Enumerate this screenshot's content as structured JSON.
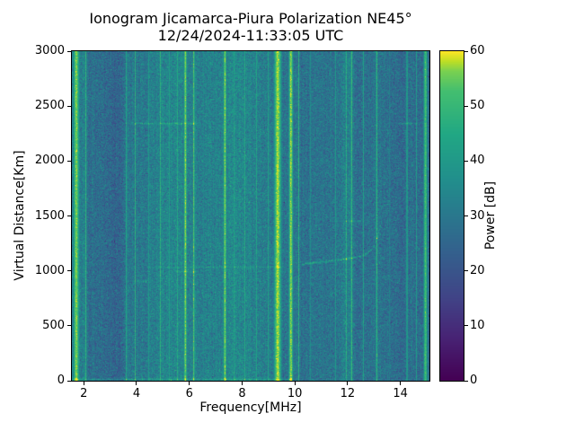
{
  "chart_data": {
    "type": "heatmap",
    "title": "Ionogram Jicamarca-Piura Polarization NE45°",
    "subtitle": "12/24/2024-11:33:05 UTC",
    "xlabel": "Frequency[MHz]",
    "ylabel": "Virtual Distance[Km]",
    "colorbar_label": "Power [dB]",
    "colormap": "viridis",
    "xlim": [
      1.55,
      15.1
    ],
    "ylim": [
      0,
      3000
    ],
    "clim": [
      0,
      60
    ],
    "x_ticks": [
      2,
      4,
      6,
      8,
      10,
      12,
      14
    ],
    "y_ticks": [
      0,
      500,
      1000,
      1500,
      2000,
      2500,
      3000
    ],
    "colorbar_ticks": [
      0,
      10,
      20,
      30,
      40,
      50,
      60
    ],
    "background_mean_db": 31.5,
    "noise_std_db": 4.3,
    "seed": 42,
    "viridis_stops": [
      [
        0,
        "#440154"
      ],
      [
        0.13,
        "#482475"
      ],
      [
        0.25,
        "#414487"
      ],
      [
        0.38,
        "#355f8d"
      ],
      [
        0.5,
        "#2a788e"
      ],
      [
        0.62,
        "#21918c"
      ],
      [
        0.75,
        "#22a884"
      ],
      [
        0.88,
        "#44bf70"
      ],
      [
        0.94,
        "#7ad151"
      ],
      [
        0.97,
        "#bddf26"
      ],
      [
        1,
        "#fde725"
      ]
    ],
    "shade_bands": [
      [
        2.15,
        3.45,
        -4.5
      ],
      [
        3.5,
        5.6,
        1.5
      ],
      [
        6.3,
        7.25,
        0.5
      ],
      [
        7.45,
        9.1,
        2
      ],
      [
        10.25,
        11.65,
        -3.5
      ],
      [
        12.3,
        14.15,
        -4.5
      ],
      [
        14.4,
        15.05,
        -2
      ]
    ],
    "rfi_stripes": [
      [
        1.72,
        0.3,
        57
      ],
      [
        2.08,
        0.09,
        49
      ],
      [
        3.62,
        0.08,
        47
      ],
      [
        3.95,
        0.07,
        48
      ],
      [
        4.45,
        0.06,
        46
      ],
      [
        4.9,
        0.07,
        49
      ],
      [
        5.25,
        0.05,
        45
      ],
      [
        5.55,
        0.05,
        46
      ],
      [
        5.85,
        0.16,
        57
      ],
      [
        6.17,
        0.1,
        55
      ],
      [
        6.55,
        0.05,
        44
      ],
      [
        7.0,
        0.05,
        45
      ],
      [
        7.35,
        0.16,
        57
      ],
      [
        7.7,
        0.05,
        45
      ],
      [
        8.1,
        0.06,
        46
      ],
      [
        8.55,
        0.05,
        45
      ],
      [
        9.0,
        0.07,
        48
      ],
      [
        9.35,
        0.38,
        59
      ],
      [
        9.85,
        0.22,
        58
      ],
      [
        10.15,
        0.07,
        49
      ],
      [
        10.6,
        0.05,
        44
      ],
      [
        11.05,
        0.05,
        44
      ],
      [
        11.55,
        0.05,
        44
      ],
      [
        11.95,
        0.07,
        47
      ],
      [
        12.15,
        0.1,
        51
      ],
      [
        12.6,
        0.05,
        44
      ],
      [
        13.1,
        0.09,
        50
      ],
      [
        13.6,
        0.05,
        44
      ],
      [
        14.25,
        0.08,
        47
      ],
      [
        14.6,
        0.05,
        44
      ],
      [
        14.95,
        0.2,
        53
      ]
    ],
    "echo_traces": [
      {
        "type": "h",
        "f1": 3.95,
        "f2": 6.35,
        "km": 2340,
        "boost": 9
      },
      {
        "type": "h",
        "f1": 13.9,
        "f2": 14.65,
        "km": 2340,
        "boost": 9
      },
      {
        "type": "h",
        "f1": 3.88,
        "f2": 4.4,
        "km": 900,
        "boost": 8
      },
      {
        "type": "h",
        "f1": 5.5,
        "f2": 6.35,
        "km": 995,
        "boost": 7
      },
      {
        "type": "h",
        "f1": 4.4,
        "f2": 9.7,
        "km": 1035,
        "boost": 5
      },
      {
        "type": "h",
        "f1": 11.85,
        "f2": 12.5,
        "km": 1450,
        "boost": 8
      },
      {
        "type": "h",
        "f1": 1.6,
        "f2": 9.9,
        "km": 15,
        "boost": 9
      },
      {
        "type": "curve",
        "points": [
          [
            10.25,
            1060
          ],
          [
            11.2,
            1085
          ],
          [
            12.0,
            1110
          ],
          [
            12.6,
            1140
          ],
          [
            12.95,
            1200
          ],
          [
            13.15,
            1320
          ],
          [
            13.3,
            1460
          ]
        ],
        "boost": 13
      }
    ]
  }
}
